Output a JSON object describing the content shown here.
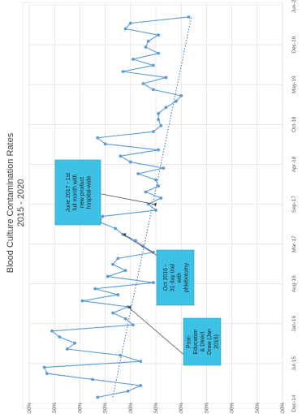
{
  "chart_data": {
    "type": "line",
    "title": "Blood Culture Contamination Rates",
    "subtitle": "2015 - 2020",
    "xlabel": "",
    "ylabel": "",
    "x_ticks": [
      "Dec-14",
      "Jul-15",
      "Jan-16",
      "Aug-16",
      "Mar-17",
      "Sep-17",
      "Apr-18",
      "Oct-18",
      "May-19",
      "Dec-19",
      "Jun-20"
    ],
    "y_ticks": [
      "0.00%",
      "0.50%",
      "1.00%",
      "1.50%",
      "2.00%",
      "2.50%",
      "3.00%",
      "3.50%",
      "4.00%",
      "4.50%",
      "5.00%"
    ],
    "ylim": [
      0,
      5
    ],
    "y_unit": "%",
    "trendline": {
      "style": "dotted",
      "start": 3.35,
      "end": 1.8
    },
    "grid": true,
    "series": [
      {
        "name": "",
        "color": "#5b9bd5",
        "x": [
          "2015-01",
          "2015-02",
          "2015-03",
          "2015-04",
          "2015-05",
          "2015-06",
          "2015-07",
          "2015-08",
          "2015-09",
          "2015-10",
          "2015-11",
          "2015-12",
          "2016-01",
          "2016-02",
          "2016-03",
          "2016-04",
          "2016-05",
          "2016-06",
          "2016-07",
          "2016-08",
          "2016-09",
          "2016-10",
          "2016-11",
          "2016-12",
          "2017-01",
          "2017-02",
          "2017-03",
          "2017-04",
          "2017-05",
          "2017-06",
          "2017-07",
          "2017-08",
          "2017-09",
          "2017-10",
          "2017-11",
          "2017-12",
          "2018-01",
          "2018-02",
          "2018-03",
          "2018-04",
          "2018-05",
          "2018-06",
          "2018-07",
          "2018-08",
          "2018-09",
          "2018-10",
          "2018-11",
          "2018-12",
          "2019-01",
          "2019-02",
          "2019-03",
          "2019-04",
          "2019-05",
          "2019-06",
          "2019-07",
          "2019-08",
          "2019-09",
          "2019-10",
          "2019-11",
          "2019-12",
          "2020-01",
          "2020-02",
          "2020-03",
          "2020-04"
        ],
        "values": [
          3.65,
          3.05,
          2.8,
          3.75,
          4.65,
          4.7,
          2.8,
          3.2,
          4.25,
          4.1,
          4.4,
          4.55,
          2.95,
          3.1,
          3.35,
          3.05,
          3.95,
          3.25,
          3.7,
          2.55,
          3.45,
          3.1,
          3.35,
          3.25,
          2.55,
          2.75,
          2.9,
          3.15,
          3.3,
          3.6,
          3.55,
          2.5,
          2.65,
          2.4,
          2.7,
          2.45,
          2.5,
          2.85,
          2.35,
          3.0,
          3.2,
          2.45,
          3.5,
          3.65,
          2.55,
          2.4,
          2.45,
          2.45,
          2.3,
          2.1,
          2.0,
          2.55,
          2.75,
          2.3,
          3.15,
          2.55,
          2.95,
          2.45,
          2.7,
          2.65,
          2.45,
          3.1,
          3.0,
          1.85
        ]
      }
    ],
    "annotations": [
      {
        "id": "post-education",
        "lines": [
          "Post-",
          "Education",
          "& Direct",
          "Draw (Jan",
          "2016)"
        ],
        "target_x": "2016-04",
        "target_y": 3.05
      },
      {
        "id": "oct-2016",
        "lines": [
          "Oct 2016 -",
          "31 day trial",
          "with",
          "phlebotomy"
        ],
        "target_x": "2017-04",
        "target_y": 3.15
      },
      {
        "id": "june-2017",
        "lines": [
          "June 2017 - 1st",
          "full month with",
          "new product",
          "hospital-wide"
        ],
        "target_x": "2017-09",
        "target_y": 2.55
      }
    ],
    "colors": {
      "line": "#5b9bd5",
      "trend": "#2e75b6",
      "annotation_box": "#3ec1e6"
    }
  }
}
